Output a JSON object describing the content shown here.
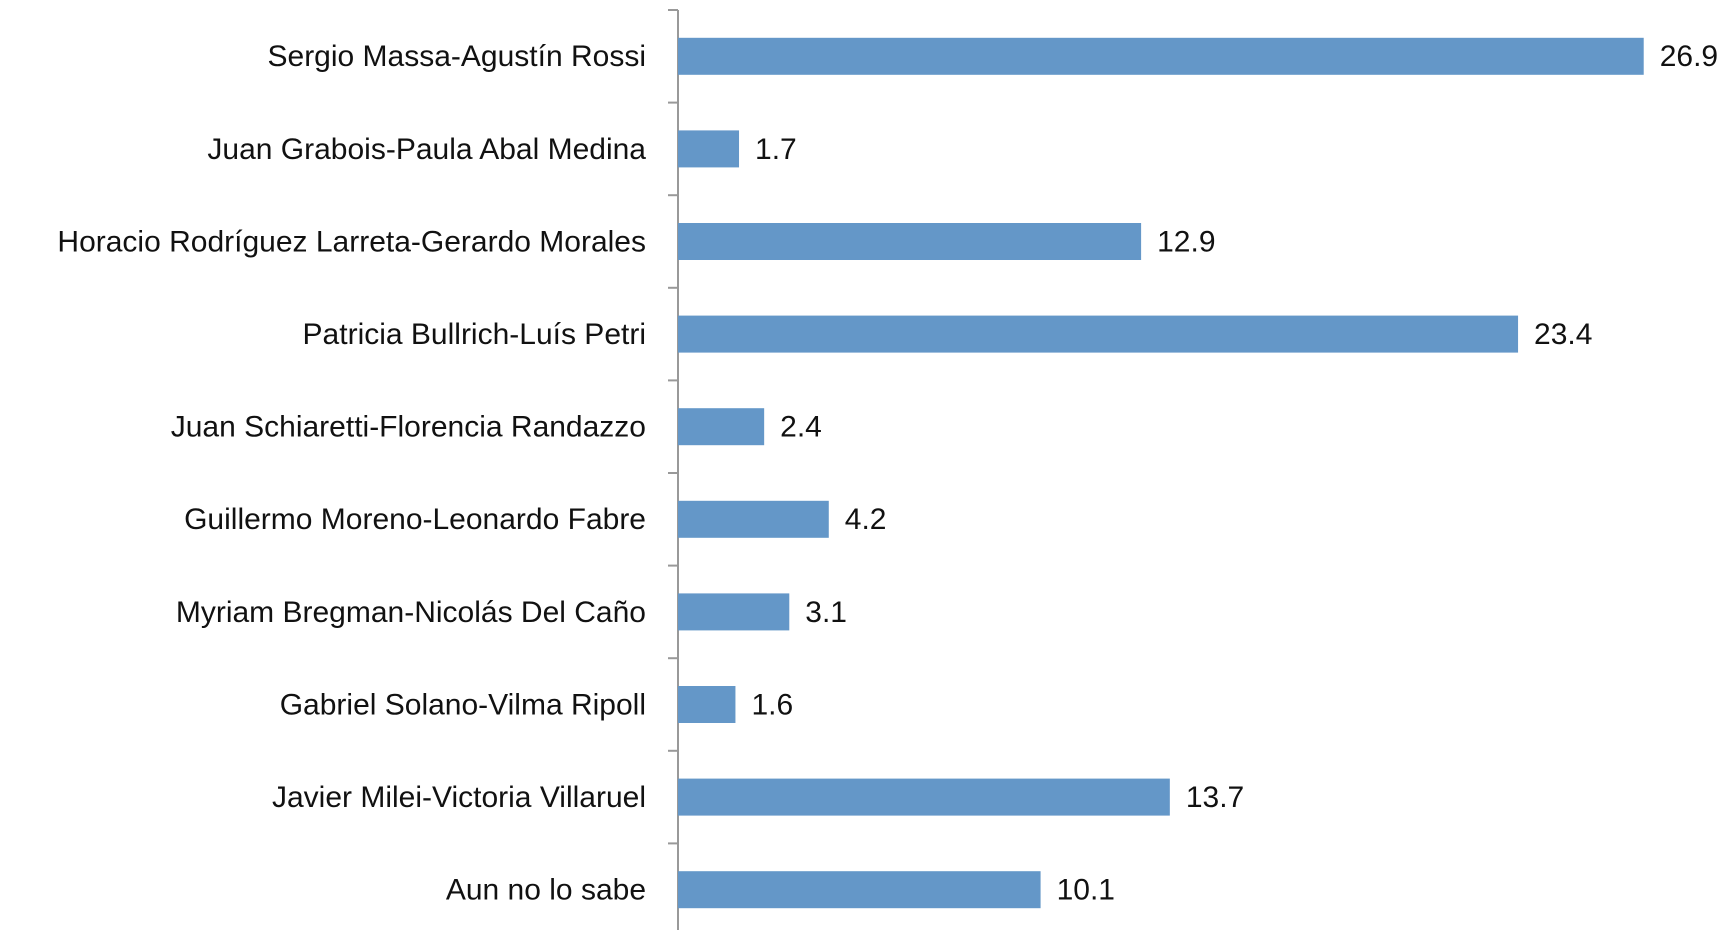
{
  "chart_data": {
    "type": "barh",
    "categories": [
      "Sergio Massa-Agustín Rossi",
      "Juan Grabois-Paula Abal Medina",
      "Horacio Rodríguez Larreta-Gerardo Morales",
      "Patricia Bullrich-Luís Petri",
      "Juan Schiaretti-Florencia Randazzo",
      "Guillermo Moreno-Leonardo Fabre",
      "Myriam Bregman-Nicolás Del Caño",
      "Gabriel Solano-Vilma Ripoll",
      "Javier Milei-Victoria Villaruel",
      "Aun no lo sabe"
    ],
    "values": [
      26.9,
      1.7,
      12.9,
      23.4,
      2.4,
      4.2,
      3.1,
      1.6,
      13.7,
      10.1
    ],
    "color": "#6497c8",
    "xlim": [
      0,
      28
    ]
  }
}
